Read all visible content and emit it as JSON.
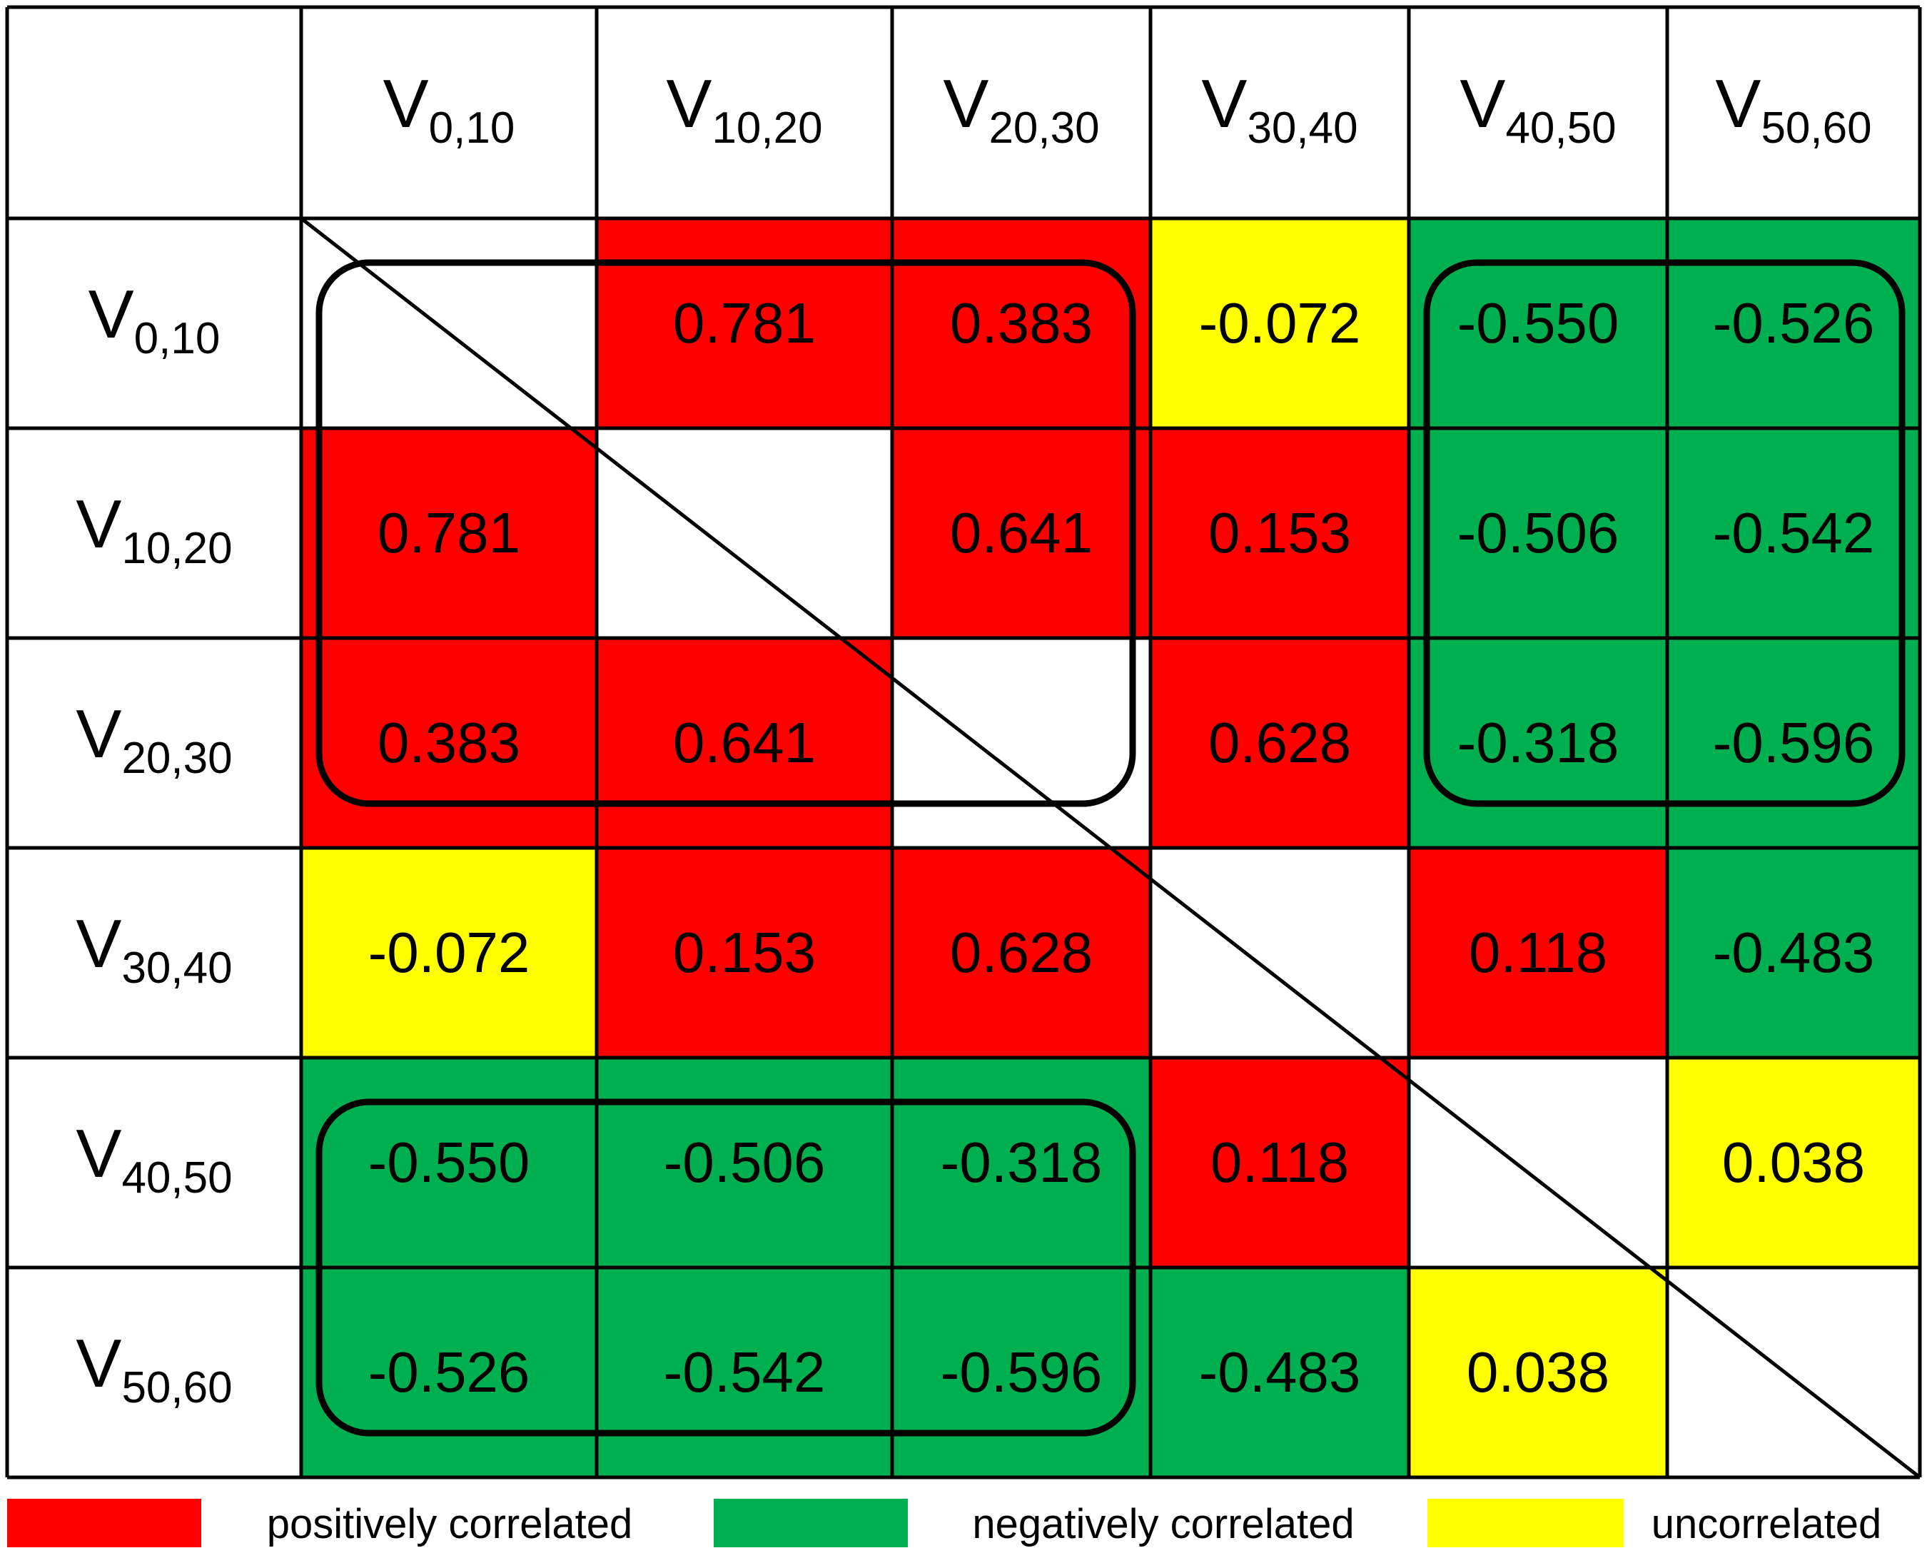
{
  "chart_data": {
    "type": "heatmap",
    "title": "",
    "xlabel": "",
    "ylabel": "",
    "labels": [
      {
        "base": "V",
        "sub": "0,10"
      },
      {
        "base": "V",
        "sub": "10,20"
      },
      {
        "base": "V",
        "sub": "20,30"
      },
      {
        "base": "V",
        "sub": "30,40"
      },
      {
        "base": "V",
        "sub": "40,50"
      },
      {
        "base": "V",
        "sub": "50,60"
      }
    ],
    "matrix": [
      [
        null,
        "0.781",
        "0.383",
        "-0.072",
        "-0.550",
        "-0.526"
      ],
      [
        "0.781",
        null,
        "0.641",
        "0.153",
        "-0.506",
        "-0.542"
      ],
      [
        "0.383",
        "0.641",
        null,
        "0.628",
        "-0.318",
        "-0.596"
      ],
      [
        "-0.072",
        "0.153",
        "0.628",
        null,
        "0.118",
        "-0.483"
      ],
      [
        "-0.550",
        "-0.506",
        "-0.318",
        "0.118",
        null,
        "0.038"
      ],
      [
        "-0.526",
        "-0.542",
        "-0.596",
        "-0.483",
        "0.038",
        null
      ]
    ],
    "categories_matrix": [
      [
        null,
        "pos",
        "pos",
        "unc",
        "neg",
        "neg"
      ],
      [
        "pos",
        null,
        "pos",
        "pos",
        "neg",
        "neg"
      ],
      [
        "pos",
        "pos",
        null,
        "pos",
        "neg",
        "neg"
      ],
      [
        "unc",
        "pos",
        "pos",
        null,
        "pos",
        "neg"
      ],
      [
        "neg",
        "neg",
        "neg",
        "pos",
        null,
        "unc"
      ],
      [
        "neg",
        "neg",
        "neg",
        "neg",
        "unc",
        null
      ]
    ],
    "highlight_groups": [
      {
        "rows": [
          0,
          2
        ],
        "cols": [
          0,
          2
        ]
      },
      {
        "rows": [
          0,
          2
        ],
        "cols": [
          4,
          5
        ]
      },
      {
        "rows": [
          4,
          5
        ],
        "cols": [
          0,
          2
        ]
      }
    ],
    "legend": [
      {
        "key": "pos",
        "label": "positively correlated",
        "color": "#ff0000"
      },
      {
        "key": "neg",
        "label": "negatively correlated",
        "color": "#00b050"
      },
      {
        "key": "unc",
        "label": "uncorrelated",
        "color": "#ffff00"
      }
    ]
  }
}
